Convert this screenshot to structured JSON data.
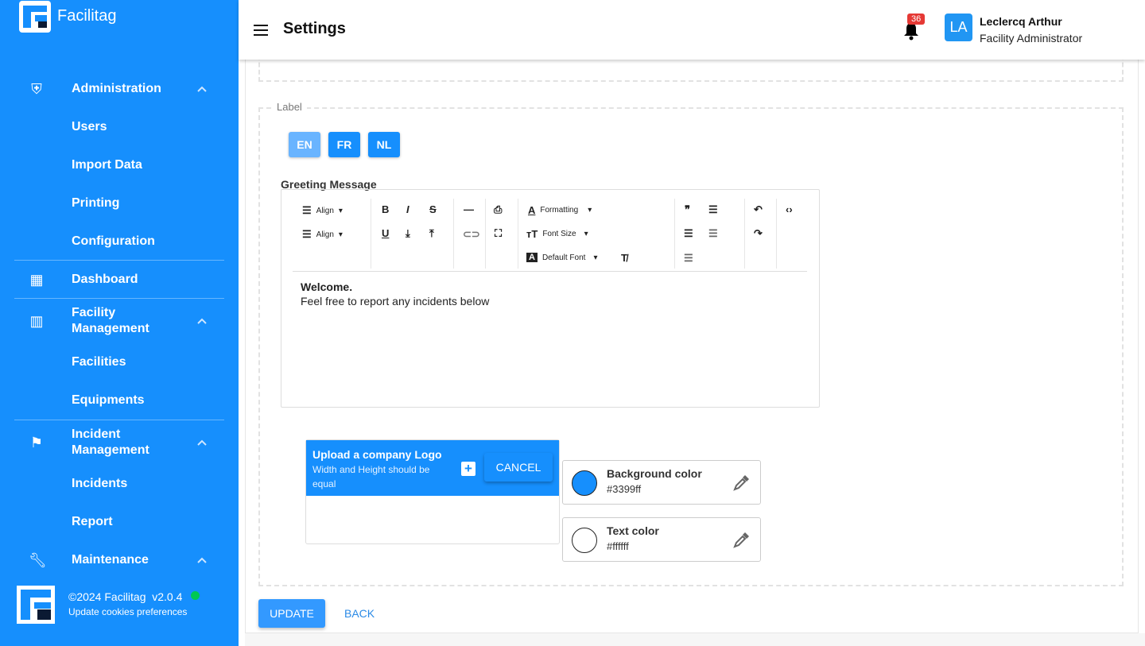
{
  "app": {
    "name": "Facilitag"
  },
  "sidebar": {
    "items": [
      {
        "label": "Administration",
        "icon": "admin-shield-icon",
        "expanded": true,
        "children": [
          "Users",
          "Import Data",
          "Printing",
          "Configuration"
        ]
      },
      {
        "label": "Dashboard",
        "icon": "dashboard-icon"
      },
      {
        "label": "Facility Management",
        "icon": "building-icon",
        "expanded": true,
        "children": [
          "Facilities",
          "Equipments"
        ]
      },
      {
        "label": "Incident Management",
        "icon": "flag-icon",
        "expanded": true,
        "children": [
          "Incidents",
          "Report"
        ]
      },
      {
        "label": "Maintenance",
        "icon": "wrench-icon",
        "expanded": true
      }
    ],
    "footer": {
      "copyright": "©2024 Facilitag  v2.0.4",
      "cookies_link": "Update cookies preferences",
      "status_color": "#00c853"
    }
  },
  "header": {
    "title": "Settings",
    "notifications_count": "36",
    "user": {
      "initials": "LA",
      "name": "Leclercq Arthur",
      "role": "Facility Administrator"
    }
  },
  "label_section": {
    "legend": "Label",
    "languages": [
      {
        "code": "EN",
        "active": true
      },
      {
        "code": "FR"
      },
      {
        "code": "NL"
      }
    ],
    "greeting_label": "Greeting Message",
    "toolbar": {
      "align1": "Align",
      "align2": "Align",
      "formatting": "Formatting",
      "font_size": "Font Size",
      "default_font": "Default Font"
    },
    "editor": {
      "line1": "Welcome.",
      "line2": "Feel free to report any incidents below"
    }
  },
  "logo_upload": {
    "title": "Upload a company Logo",
    "subtitle": "Width and Height should be equal",
    "cancel": "CANCEL"
  },
  "colors": {
    "background": {
      "label": "Background color",
      "value": "#3399ff"
    },
    "text": {
      "label": "Text color",
      "value": "#ffffff"
    }
  },
  "actions": {
    "update": "UPDATE",
    "back": "BACK"
  }
}
